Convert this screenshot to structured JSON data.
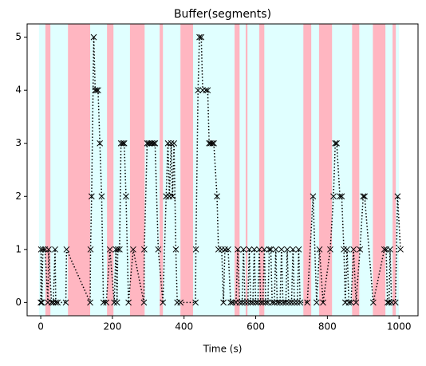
{
  "chart_data": {
    "type": "line",
    "title": "Buffer(segments)",
    "x_label": "Time (s)",
    "color": "#000000",
    "line_style": "dotted",
    "marker": "x",
    "xlim": [
      -38,
      1053
    ],
    "ylim": [
      -0.25,
      5.25
    ],
    "xticks": [
      0,
      200,
      400,
      600,
      800,
      1000
    ],
    "yticks": [
      0,
      1,
      2,
      3,
      4,
      5
    ],
    "spans": [
      {
        "start": -5,
        "end": 1000,
        "color": "#e0ffff"
      },
      {
        "start": 13,
        "end": 27,
        "color": "#ffb6c1"
      },
      {
        "start": 76,
        "end": 138,
        "color": "#ffb6c1"
      },
      {
        "start": 185,
        "end": 203,
        "color": "#ffb6c1"
      },
      {
        "start": 249,
        "end": 290,
        "color": "#ffb6c1"
      },
      {
        "start": 332,
        "end": 341,
        "color": "#ffb6c1"
      },
      {
        "start": 390,
        "end": 425,
        "color": "#ffb6c1"
      },
      {
        "start": 541,
        "end": 555,
        "color": "#ffb6c1"
      },
      {
        "start": 572,
        "end": 577,
        "color": "#ffb6c1"
      },
      {
        "start": 610,
        "end": 624,
        "color": "#ffb6c1"
      },
      {
        "start": 733,
        "end": 755,
        "color": "#ffb6c1"
      },
      {
        "start": 777,
        "end": 813,
        "color": "#ffb6c1"
      },
      {
        "start": 869,
        "end": 889,
        "color": "#ffb6c1"
      },
      {
        "start": 927,
        "end": 962,
        "color": "#ffb6c1"
      },
      {
        "start": 982,
        "end": 991,
        "color": "#ffb6c1"
      }
    ],
    "x": [
      0,
      1,
      3,
      6,
      12,
      20,
      22,
      30,
      35,
      40,
      42,
      47,
      70,
      72,
      138,
      139,
      142,
      148,
      152,
      156,
      160,
      165,
      170,
      175,
      183,
      193,
      205,
      210,
      213,
      215,
      220,
      224,
      229,
      233,
      238,
      245,
      258,
      288,
      289,
      297,
      301,
      306,
      310,
      315,
      319,
      328,
      341,
      350,
      355,
      359,
      364,
      368,
      372,
      377,
      381,
      390,
      432,
      433,
      439,
      443,
      448,
      452,
      461,
      466,
      470,
      474,
      479,
      483,
      492,
      496,
      505,
      510,
      514,
      523,
      530,
      535,
      545,
      550,
      555,
      562,
      566,
      570,
      578,
      582,
      586,
      592,
      596,
      600,
      606,
      610,
      614,
      620,
      624,
      628,
      634,
      638,
      642,
      646,
      652,
      656,
      660,
      668,
      672,
      676,
      684,
      688,
      692,
      700,
      704,
      708,
      716,
      720,
      724,
      744,
      760,
      770,
      778,
      788,
      808,
      817,
      822,
      826,
      835,
      840,
      846,
      850,
      855,
      860,
      866,
      873,
      880,
      891,
      900,
      904,
      928,
      959,
      964,
      968,
      972,
      975,
      979,
      990,
      996,
      1004
    ],
    "values": [
      0,
      1,
      0,
      1,
      1,
      0,
      1,
      0,
      0,
      1,
      0,
      0,
      0,
      1,
      0,
      1,
      2,
      5,
      4,
      4,
      4,
      3,
      2,
      0,
      0,
      1,
      0,
      1,
      0,
      1,
      1,
      3,
      3,
      3,
      2,
      0,
      1,
      0,
      1,
      3,
      3,
      3,
      3,
      3,
      3,
      1,
      0,
      2,
      3,
      2,
      3,
      2,
      3,
      1,
      0,
      0,
      0,
      1,
      4,
      5,
      5,
      4,
      4,
      4,
      3,
      3,
      3,
      3,
      2,
      1,
      1,
      0,
      1,
      1,
      0,
      0,
      0,
      1,
      0,
      0,
      1,
      0,
      0,
      1,
      0,
      0,
      1,
      0,
      0,
      1,
      0,
      0,
      1,
      0,
      0,
      1,
      1,
      0,
      0,
      1,
      0,
      0,
      1,
      0,
      0,
      1,
      0,
      0,
      1,
      0,
      0,
      1,
      0,
      0,
      2,
      0,
      1,
      0,
      1,
      2,
      3,
      3,
      2,
      2,
      1,
      0,
      1,
      0,
      0,
      1,
      0,
      1,
      2,
      2,
      0,
      1,
      1,
      0,
      0,
      1,
      0,
      0,
      2,
      1
    ]
  }
}
